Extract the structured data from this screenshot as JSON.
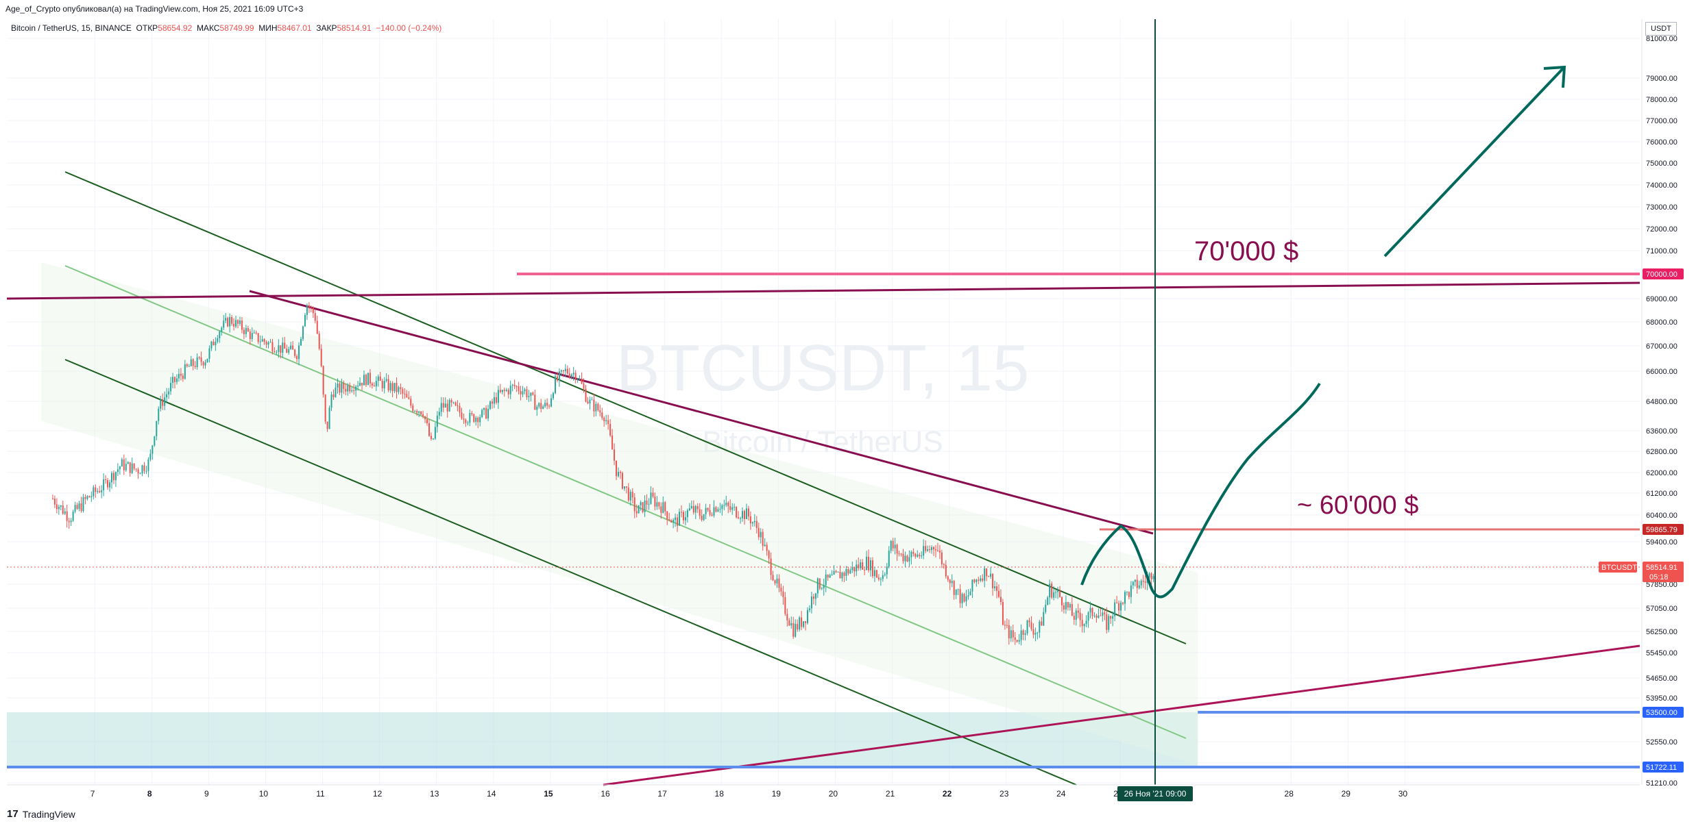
{
  "header": {
    "published_line": "Age_of_Crypto опубликовал(а) на TradingView.com, Ноя 25, 2021 16:09 UTC+3",
    "symbol_name": "Bitcoin / TetherUS, 15, BINANCE",
    "open_label": "ОТКР",
    "open_value": "58654.92",
    "high_label": "МАКС",
    "high_value": "58749.99",
    "low_label": "МИН",
    "low_value": "58467.01",
    "close_label": "ЗАКР",
    "close_value": "58514.91",
    "change": "−140.00 (−0.24%)"
  },
  "currency_label": "USDT",
  "watermark": {
    "title": "BTCUSDT, 15",
    "subtitle": "Bitcoin / TetherUS"
  },
  "footer": {
    "brand": "TradingView",
    "logo_glyph": "17"
  },
  "colors": {
    "candle_up": "#26a69a",
    "candle_down": "#ef5350",
    "channel_dark": "#1b5e20",
    "channel_mid": "#81c784",
    "trend_purple": "#880e4f",
    "support_magenta": "#ad1457",
    "target_pink": "#f06292",
    "level_red": "#e57373",
    "level_blue": "#5c8ded",
    "forecast": "#00695c",
    "vline": "#0d4d40",
    "zone_fill": "#b2dfdb"
  },
  "chart_data": {
    "type": "candlestick",
    "title": "BTCUSDT, 15",
    "xlabel": "",
    "ylabel": "",
    "ylim": [
      51210,
      81500
    ],
    "y_ticks": [
      {
        "value": 81000,
        "label": "81000.00"
      },
      {
        "value": 79000,
        "label": "79000.00"
      },
      {
        "value": 78000,
        "label": "78000.00"
      },
      {
        "value": 77000,
        "label": "77000.00"
      },
      {
        "value": 76000,
        "label": "76000.00"
      },
      {
        "value": 75000,
        "label": "75000.00"
      },
      {
        "value": 74000,
        "label": "74000.00"
      },
      {
        "value": 73000,
        "label": "73000.00"
      },
      {
        "value": 72000,
        "label": "72000.00"
      },
      {
        "value": 71000,
        "label": "71000.00"
      },
      {
        "value": 69000,
        "label": "69000.00"
      },
      {
        "value": 68000,
        "label": "68000.00"
      },
      {
        "value": 67000,
        "label": "67000.00"
      },
      {
        "value": 66000,
        "label": "66000.00"
      },
      {
        "value": 64800,
        "label": "64800.00"
      },
      {
        "value": 63600,
        "label": "63600.00"
      },
      {
        "value": 62800,
        "label": "62800.00"
      },
      {
        "value": 62000,
        "label": "62000.00"
      },
      {
        "value": 61200,
        "label": "61200.00"
      },
      {
        "value": 60400,
        "label": "60400.00"
      },
      {
        "value": 59400,
        "label": "59400.00"
      },
      {
        "value": 57850,
        "label": "57850.00"
      },
      {
        "value": 57050,
        "label": "57050.00"
      },
      {
        "value": 56250,
        "label": "56250.00"
      },
      {
        "value": 55450,
        "label": "55450.00"
      },
      {
        "value": 54650,
        "label": "54650.00"
      },
      {
        "value": 53950,
        "label": "53950.00"
      },
      {
        "value": 52550,
        "label": "52550.00"
      },
      {
        "value": 51210,
        "label": "51210.00"
      }
    ],
    "x_ticks": [
      {
        "day": 7,
        "label": "7",
        "bold": false
      },
      {
        "day": 8,
        "label": "8",
        "bold": true
      },
      {
        "day": 9,
        "label": "9",
        "bold": false
      },
      {
        "day": 10,
        "label": "10",
        "bold": false
      },
      {
        "day": 11,
        "label": "11",
        "bold": false
      },
      {
        "day": 12,
        "label": "12",
        "bold": false
      },
      {
        "day": 13,
        "label": "13",
        "bold": false
      },
      {
        "day": 14,
        "label": "14",
        "bold": false
      },
      {
        "day": 15,
        "label": "15",
        "bold": true
      },
      {
        "day": 16,
        "label": "16",
        "bold": false
      },
      {
        "day": 17,
        "label": "17",
        "bold": false
      },
      {
        "day": 18,
        "label": "18",
        "bold": false
      },
      {
        "day": 19,
        "label": "19",
        "bold": false
      },
      {
        "day": 20,
        "label": "20",
        "bold": false
      },
      {
        "day": 21,
        "label": "21",
        "bold": false
      },
      {
        "day": 22,
        "label": "22",
        "bold": true
      },
      {
        "day": 23,
        "label": "23",
        "bold": false
      },
      {
        "day": 24,
        "label": "24",
        "bold": false
      },
      {
        "day": 25,
        "label": "25",
        "bold": false
      },
      {
        "day": 28,
        "label": "28",
        "bold": false
      },
      {
        "day": 29,
        "label": "29",
        "bold": false
      },
      {
        "day": 30,
        "label": "30",
        "bold": false
      }
    ],
    "price_path": [
      [
        6.3,
        61000
      ],
      [
        6.6,
        60300
      ],
      [
        6.9,
        61000
      ],
      [
        7.2,
        61500
      ],
      [
        7.5,
        62300
      ],
      [
        7.8,
        62100
      ],
      [
        8.0,
        62400
      ],
      [
        8.15,
        64500
      ],
      [
        8.4,
        65500
      ],
      [
        8.7,
        66200
      ],
      [
        9.0,
        66500
      ],
      [
        9.2,
        67600
      ],
      [
        9.4,
        68100
      ],
      [
        9.6,
        67800
      ],
      [
        9.8,
        67400
      ],
      [
        10.0,
        67200
      ],
      [
        10.3,
        66900
      ],
      [
        10.6,
        66700
      ],
      [
        10.75,
        68800
      ],
      [
        10.9,
        68300
      ],
      [
        11.0,
        66500
      ],
      [
        11.1,
        63400
      ],
      [
        11.2,
        65200
      ],
      [
        11.5,
        65400
      ],
      [
        11.8,
        65700
      ],
      [
        12.1,
        65500
      ],
      [
        12.4,
        65200
      ],
      [
        12.6,
        64600
      ],
      [
        12.8,
        64400
      ],
      [
        12.95,
        63000
      ],
      [
        13.1,
        64600
      ],
      [
        13.3,
        64600
      ],
      [
        13.6,
        64100
      ],
      [
        13.9,
        64300
      ],
      [
        14.1,
        65000
      ],
      [
        14.4,
        65400
      ],
      [
        14.6,
        65200
      ],
      [
        14.8,
        64600
      ],
      [
        15.0,
        64600
      ],
      [
        15.1,
        65500
      ],
      [
        15.3,
        66000
      ],
      [
        15.5,
        65900
      ],
      [
        15.7,
        64800
      ],
      [
        16.0,
        64200
      ],
      [
        16.2,
        62000
      ],
      [
        16.4,
        61200
      ],
      [
        16.55,
        60500
      ],
      [
        16.8,
        61000
      ],
      [
        17.0,
        60700
      ],
      [
        17.2,
        60100
      ],
      [
        17.5,
        60600
      ],
      [
        17.7,
        60400
      ],
      [
        18.0,
        60800
      ],
      [
        18.2,
        60600
      ],
      [
        18.5,
        60400
      ],
      [
        18.7,
        59800
      ],
      [
        18.9,
        58500
      ],
      [
        19.1,
        57300
      ],
      [
        19.3,
        56300
      ],
      [
        19.5,
        56700
      ],
      [
        19.7,
        57800
      ],
      [
        20.0,
        58100
      ],
      [
        20.3,
        58400
      ],
      [
        20.6,
        58700
      ],
      [
        20.8,
        58100
      ],
      [
        20.9,
        58300
      ],
      [
        21.0,
        59300
      ],
      [
        21.2,
        58900
      ],
      [
        21.4,
        58900
      ],
      [
        21.6,
        59000
      ],
      [
        21.8,
        59300
      ],
      [
        21.95,
        58500
      ],
      [
        22.1,
        57800
      ],
      [
        22.3,
        57200
      ],
      [
        22.5,
        58000
      ],
      [
        22.7,
        58400
      ],
      [
        22.9,
        57500
      ],
      [
        23.0,
        56400
      ],
      [
        23.2,
        55900
      ],
      [
        23.4,
        56500
      ],
      [
        23.6,
        56200
      ],
      [
        23.8,
        57700
      ],
      [
        24.0,
        57400
      ],
      [
        24.2,
        56800
      ],
      [
        24.4,
        56600
      ],
      [
        24.6,
        57000
      ],
      [
        24.8,
        56500
      ],
      [
        24.95,
        57100
      ],
      [
        25.1,
        57400
      ],
      [
        25.3,
        57800
      ],
      [
        25.5,
        58000
      ],
      [
        25.65,
        58500
      ]
    ],
    "last_price": 58514.91
  },
  "drawings": {
    "target_70k_label": "70'000 $",
    "target_60k_label": "~ 60'000 $"
  },
  "price_tags": [
    {
      "key": "t70000",
      "value": 70000,
      "label": "70000.00",
      "color": "#e91e63"
    },
    {
      "key": "t59865",
      "value": 59865.79,
      "label": "59865.79",
      "color": "#c62828"
    },
    {
      "key": "tlast",
      "value": 58514.91,
      "label": "58514.91",
      "sub": "05:18",
      "color": "#ef5350"
    },
    {
      "key": "t53500",
      "value": 53500,
      "label": "53500.00",
      "color": "#2962ff"
    },
    {
      "key": "t51722",
      "value": 51722.11,
      "label": "51722.11",
      "color": "#2962ff"
    }
  ],
  "symbol_tag": "BTCUSDT",
  "time_marker": "26 Ноя '21   09:00"
}
